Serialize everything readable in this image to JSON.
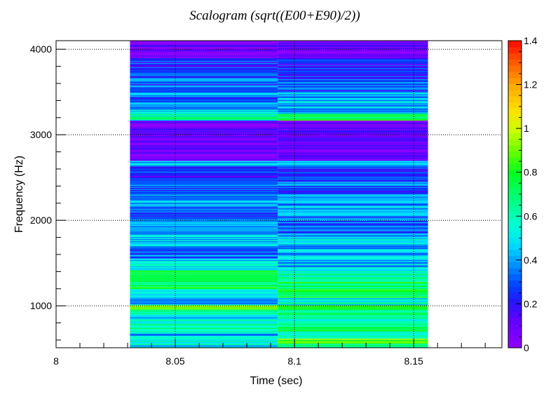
{
  "chart_data": {
    "type": "heatmap",
    "title": "Scalogram (sqrt((E00+E90)/2))",
    "xlabel": "Time (sec)",
    "ylabel": "Frequency (Hz)",
    "xlim": [
      8.0,
      8.187
    ],
    "ylim": [
      510,
      4100
    ],
    "x_ticks": [
      8,
      8.05,
      8.1,
      8.15
    ],
    "x_tick_labels": [
      "8",
      "8.05",
      "8.1",
      "8.15"
    ],
    "y_ticks": [
      1000,
      2000,
      3000,
      4000
    ],
    "y_tick_labels": [
      "1000",
      "2000",
      "3000",
      "4000"
    ],
    "grid": true,
    "colorbar": {
      "range": [
        0,
        1.4
      ],
      "ticks": [
        0,
        0.2,
        0.4,
        0.6,
        0.8,
        1,
        1.2,
        1.4
      ],
      "tick_labels": [
        "0",
        "0.2",
        "0.4",
        "0.6",
        "0.8",
        "1",
        "1.2",
        "1.4"
      ],
      "levels": 50,
      "colormap": "rainbow (violet-blue-cyan-green-yellow-orange-red)"
    },
    "time_bins": [
      [
        8.031,
        8.093
      ],
      [
        8.093,
        8.156
      ]
    ],
    "frequency_range": [
      510,
      4100
    ],
    "bands": [
      {
        "f": [
          510,
          560
        ],
        "v": [
          0.55,
          0.7
        ]
      },
      {
        "f": [
          560,
          620
        ],
        "v": [
          0.6,
          0.9
        ]
      },
      {
        "f": [
          620,
          700
        ],
        "v": [
          0.45,
          0.6
        ]
      },
      {
        "f": [
          700,
          800
        ],
        "v": [
          0.6,
          0.7
        ]
      },
      {
        "f": [
          800,
          900
        ],
        "v": [
          0.5,
          0.6
        ]
      },
      {
        "f": [
          900,
          960
        ],
        "v": [
          0.6,
          0.7
        ]
      },
      {
        "f": [
          960,
          1010
        ],
        "v": [
          0.95,
          0.85
        ]
      },
      {
        "f": [
          1010,
          1100
        ],
        "v": [
          0.45,
          0.55
        ]
      },
      {
        "f": [
          1100,
          1200
        ],
        "v": [
          0.6,
          0.75
        ]
      },
      {
        "f": [
          1200,
          1300
        ],
        "v": [
          0.75,
          0.7
        ]
      },
      {
        "f": [
          1300,
          1420
        ],
        "v": [
          0.7,
          0.6
        ]
      },
      {
        "f": [
          1420,
          1560
        ],
        "v": [
          0.5,
          0.45
        ]
      },
      {
        "f": [
          1560,
          1700
        ],
        "v": [
          0.35,
          0.4
        ]
      },
      {
        "f": [
          1700,
          1850
        ],
        "v": [
          0.5,
          0.45
        ]
      },
      {
        "f": [
          1850,
          2000
        ],
        "v": [
          0.35,
          0.3
        ]
      },
      {
        "f": [
          2000,
          2150
        ],
        "v": [
          0.3,
          0.35
        ]
      },
      {
        "f": [
          2150,
          2300
        ],
        "v": [
          0.4,
          0.4
        ]
      },
      {
        "f": [
          2300,
          2500
        ],
        "v": [
          0.3,
          0.3
        ]
      },
      {
        "f": [
          2500,
          2650
        ],
        "v": [
          0.25,
          0.25
        ]
      },
      {
        "f": [
          2650,
          2700
        ],
        "v": [
          0.45,
          0.45
        ]
      },
      {
        "f": [
          2700,
          2900
        ],
        "v": [
          0.05,
          0.05
        ]
      },
      {
        "f": [
          2900,
          3170
        ],
        "v": [
          0.08,
          0.08
        ]
      },
      {
        "f": [
          3170,
          3250
        ],
        "v": [
          0.6,
          0.75
        ]
      },
      {
        "f": [
          3250,
          3350
        ],
        "v": [
          0.45,
          0.4
        ]
      },
      {
        "f": [
          3350,
          3500
        ],
        "v": [
          0.35,
          0.4
        ]
      },
      {
        "f": [
          3500,
          3700
        ],
        "v": [
          0.3,
          0.3
        ]
      },
      {
        "f": [
          3700,
          3900
        ],
        "v": [
          0.25,
          0.2
        ]
      },
      {
        "f": [
          3900,
          4100
        ],
        "v": [
          0.05,
          0.05
        ]
      }
    ]
  }
}
